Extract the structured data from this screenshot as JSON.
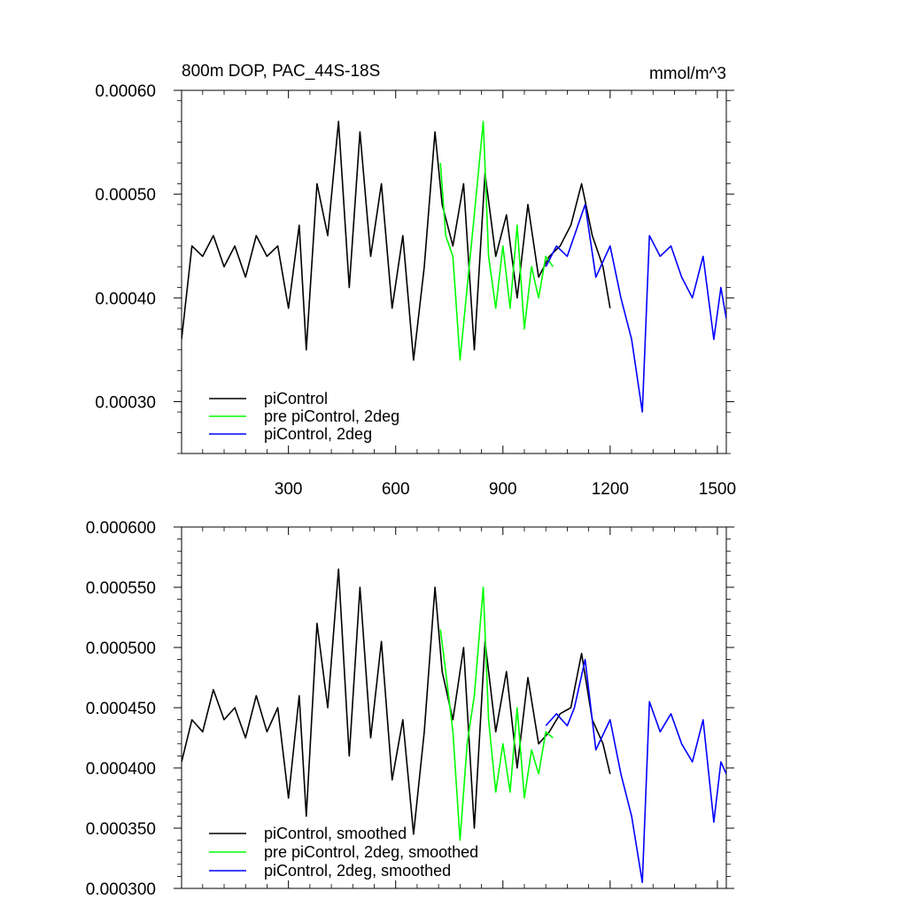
{
  "colors": {
    "black": "#000000",
    "green": "#00ff00",
    "blue": "#0000ff",
    "background": "#ffffff"
  },
  "chart_data": [
    {
      "type": "line",
      "title": "800m DOP, PAC_44S-18S",
      "units": "mmol/m^3",
      "xlim": [
        1,
        1525
      ],
      "ylim": [
        0.00025,
        0.0006
      ],
      "xticks": [
        300,
        600,
        900,
        1200,
        1500
      ],
      "xtick_labels": [
        "300",
        "600",
        "900",
        "1200",
        "1500"
      ],
      "yticks": [
        0.0003,
        0.0004,
        0.0005,
        0.0006
      ],
      "ytick_labels": [
        "0.00030",
        "0.00040",
        "0.00050",
        "0.00060"
      ],
      "legend_position": "bottom-left",
      "series": [
        {
          "name": "piControl",
          "color": "#000000",
          "x": [
            1,
            30,
            60,
            90,
            120,
            150,
            180,
            210,
            240,
            270,
            300,
            330,
            350,
            380,
            410,
            440,
            470,
            500,
            530,
            560,
            590,
            620,
            650,
            680,
            710,
            730,
            760,
            790,
            820,
            850,
            880,
            910,
            940,
            970,
            1000,
            1030,
            1060,
            1090,
            1120,
            1150,
            1180,
            1200
          ],
          "y": [
            0.00036,
            0.00045,
            0.00044,
            0.00046,
            0.00043,
            0.00045,
            0.00042,
            0.00046,
            0.00044,
            0.00045,
            0.00039,
            0.00047,
            0.00035,
            0.00051,
            0.00046,
            0.00057,
            0.00041,
            0.00056,
            0.00044,
            0.00051,
            0.00039,
            0.00046,
            0.00034,
            0.00043,
            0.00056,
            0.00049,
            0.00045,
            0.00051,
            0.00035,
            0.00052,
            0.00044,
            0.00048,
            0.0004,
            0.00049,
            0.00042,
            0.00044,
            0.00045,
            0.00047,
            0.00051,
            0.00046,
            0.00043,
            0.00039
          ]
        },
        {
          "name": "pre piControl, 2deg",
          "color": "#00ff00",
          "x": [
            725,
            740,
            760,
            780,
            800,
            820,
            845,
            860,
            880,
            900,
            920,
            940,
            960,
            980,
            1000,
            1020,
            1040
          ],
          "y": [
            0.00053,
            0.00046,
            0.00044,
            0.00034,
            0.00041,
            0.00048,
            0.00057,
            0.00044,
            0.00039,
            0.00045,
            0.00039,
            0.00047,
            0.00037,
            0.00043,
            0.0004,
            0.00044,
            0.00043
          ]
        },
        {
          "name": "piControl, 2deg",
          "color": "#0000ff",
          "x": [
            1020,
            1050,
            1080,
            1100,
            1130,
            1160,
            1200,
            1230,
            1260,
            1290,
            1310,
            1340,
            1370,
            1400,
            1430,
            1460,
            1490,
            1510,
            1525
          ],
          "y": [
            0.00043,
            0.00045,
            0.00044,
            0.00046,
            0.00049,
            0.00042,
            0.00045,
            0.0004,
            0.00036,
            0.00029,
            0.00046,
            0.00044,
            0.00045,
            0.00042,
            0.0004,
            0.00044,
            0.00036,
            0.00041,
            0.00038
          ]
        }
      ]
    },
    {
      "type": "line",
      "title": "",
      "xlim": [
        1,
        1525
      ],
      "ylim": [
        0.0003,
        0.0006
      ],
      "xticks": [
        300,
        600,
        900,
        1200,
        1500
      ],
      "yticks": [
        0.0003,
        0.00035,
        0.0004,
        0.00045,
        0.0005,
        0.00055,
        0.0006
      ],
      "ytick_labels": [
        "0.000300",
        "0.000350",
        "0.000400",
        "0.000450",
        "0.000500",
        "0.000550",
        "0.000600"
      ],
      "legend_position": "bottom-left",
      "series": [
        {
          "name": "piControl, smoothed",
          "color": "#000000",
          "x": [
            1,
            30,
            60,
            90,
            120,
            150,
            180,
            210,
            240,
            270,
            300,
            330,
            350,
            380,
            410,
            440,
            470,
            500,
            530,
            560,
            590,
            620,
            650,
            680,
            710,
            730,
            760,
            790,
            820,
            850,
            880,
            910,
            940,
            970,
            1000,
            1030,
            1060,
            1090,
            1120,
            1150,
            1180,
            1200
          ],
          "y": [
            0.000405,
            0.00044,
            0.00043,
            0.000465,
            0.00044,
            0.00045,
            0.000425,
            0.00046,
            0.00043,
            0.00045,
            0.000375,
            0.00046,
            0.00036,
            0.00052,
            0.00045,
            0.000565,
            0.00041,
            0.00055,
            0.000425,
            0.000505,
            0.00039,
            0.00044,
            0.000345,
            0.00043,
            0.00055,
            0.00048,
            0.00044,
            0.0005,
            0.00035,
            0.000505,
            0.00043,
            0.00048,
            0.0004,
            0.000475,
            0.00042,
            0.00043,
            0.000445,
            0.00045,
            0.000495,
            0.00044,
            0.00042,
            0.000395
          ]
        },
        {
          "name": "pre piControl, 2deg, smoothed",
          "color": "#00ff00",
          "x": [
            725,
            740,
            760,
            780,
            800,
            820,
            845,
            860,
            880,
            900,
            920,
            940,
            960,
            980,
            1000,
            1020,
            1040
          ],
          "y": [
            0.000515,
            0.00048,
            0.00043,
            0.00034,
            0.00042,
            0.00046,
            0.00055,
            0.00044,
            0.00038,
            0.00042,
            0.00038,
            0.00045,
            0.000375,
            0.000415,
            0.000395,
            0.00043,
            0.000425
          ]
        },
        {
          "name": "piControl, 2deg, smoothed",
          "color": "#0000ff",
          "x": [
            1020,
            1050,
            1080,
            1100,
            1130,
            1160,
            1200,
            1230,
            1260,
            1290,
            1310,
            1340,
            1370,
            1400,
            1430,
            1460,
            1490,
            1510,
            1525
          ],
          "y": [
            0.000435,
            0.000445,
            0.000435,
            0.00045,
            0.00049,
            0.000415,
            0.00044,
            0.000395,
            0.00036,
            0.000305,
            0.000455,
            0.00043,
            0.000445,
            0.00042,
            0.000405,
            0.00044,
            0.000355,
            0.000405,
            0.000395
          ]
        }
      ]
    }
  ]
}
